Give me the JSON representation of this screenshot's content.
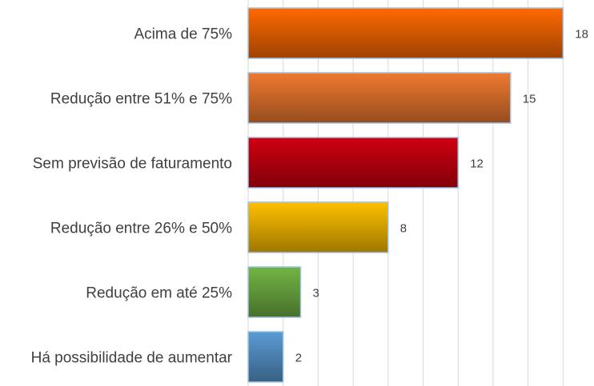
{
  "chart_data": {
    "type": "barh",
    "categories": [
      "Acima de 75%",
      "Redução entre 51% e 75%",
      "Sem previsão de faturamento",
      "Redução entre 26% e 50%",
      "Redução em até 25%",
      "Há possibilidade de aumentar"
    ],
    "values": [
      18,
      15,
      12,
      8,
      3,
      2
    ],
    "colors": [
      "#ff6a00",
      "#f07a30",
      "#d00010",
      "#ffc000",
      "#72b545",
      "#5b9bd5"
    ],
    "xlim": [
      0,
      20
    ],
    "xticks": [
      0,
      2,
      4,
      6,
      8,
      10,
      12,
      14,
      16,
      18,
      20
    ],
    "grid": true
  }
}
